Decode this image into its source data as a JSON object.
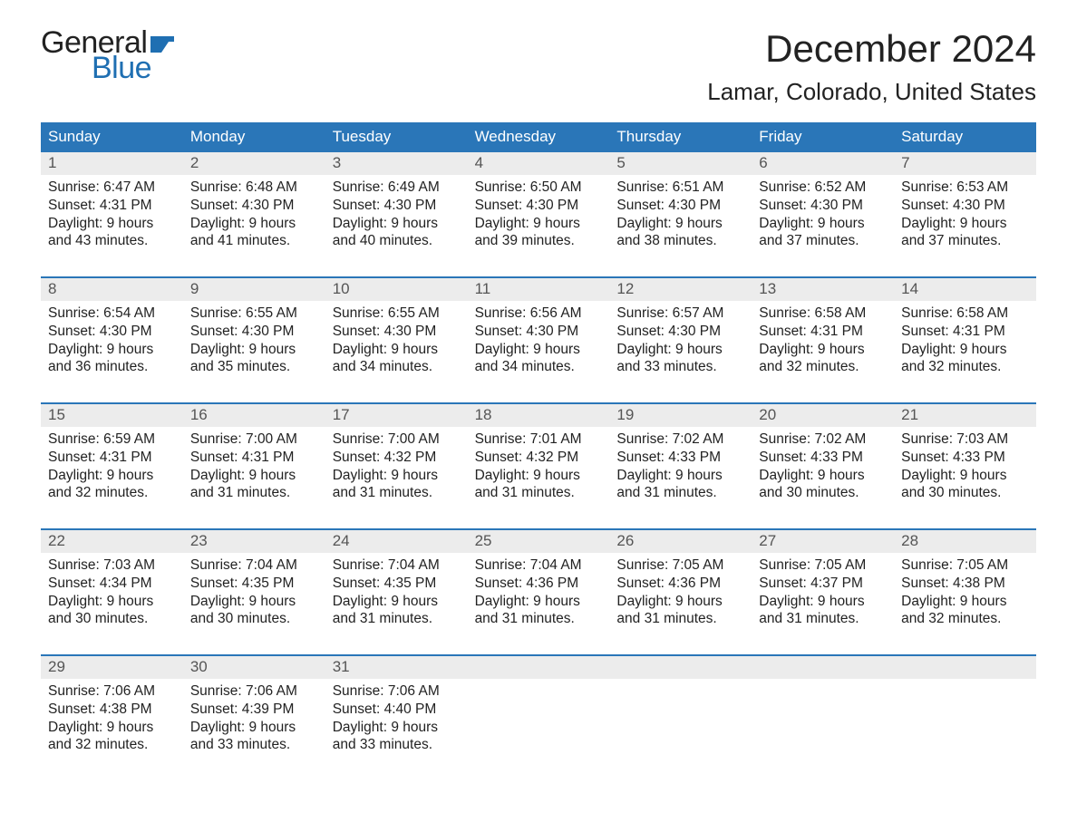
{
  "logo": {
    "top": "General",
    "bottom": "Blue"
  },
  "title": "December 2024",
  "location": "Lamar, Colorado, United States",
  "colors": {
    "header_bg": "#2a76b8",
    "header_text": "#ffffff",
    "daynum_bg": "#ececec",
    "daynum_text": "#555555",
    "body_text": "#222222",
    "logo_blue": "#1f6fb2",
    "separator": "#2a76b8",
    "page_bg": "#ffffff"
  },
  "typography": {
    "title_fontsize": 42,
    "location_fontsize": 26,
    "dayname_fontsize": 17,
    "daynum_fontsize": 17,
    "cell_fontsize": 15.5,
    "font_family": "Arial"
  },
  "layout": {
    "columns": 7,
    "rows": 5
  },
  "daynames": [
    "Sunday",
    "Monday",
    "Tuesday",
    "Wednesday",
    "Thursday",
    "Friday",
    "Saturday"
  ],
  "weeks": [
    {
      "nums": [
        "1",
        "2",
        "3",
        "4",
        "5",
        "6",
        "7"
      ],
      "cells": [
        {
          "sunrise": "Sunrise: 6:47 AM",
          "sunset": "Sunset: 4:31 PM",
          "d1": "Daylight: 9 hours",
          "d2": "and 43 minutes."
        },
        {
          "sunrise": "Sunrise: 6:48 AM",
          "sunset": "Sunset: 4:30 PM",
          "d1": "Daylight: 9 hours",
          "d2": "and 41 minutes."
        },
        {
          "sunrise": "Sunrise: 6:49 AM",
          "sunset": "Sunset: 4:30 PM",
          "d1": "Daylight: 9 hours",
          "d2": "and 40 minutes."
        },
        {
          "sunrise": "Sunrise: 6:50 AM",
          "sunset": "Sunset: 4:30 PM",
          "d1": "Daylight: 9 hours",
          "d2": "and 39 minutes."
        },
        {
          "sunrise": "Sunrise: 6:51 AM",
          "sunset": "Sunset: 4:30 PM",
          "d1": "Daylight: 9 hours",
          "d2": "and 38 minutes."
        },
        {
          "sunrise": "Sunrise: 6:52 AM",
          "sunset": "Sunset: 4:30 PM",
          "d1": "Daylight: 9 hours",
          "d2": "and 37 minutes."
        },
        {
          "sunrise": "Sunrise: 6:53 AM",
          "sunset": "Sunset: 4:30 PM",
          "d1": "Daylight: 9 hours",
          "d2": "and 37 minutes."
        }
      ]
    },
    {
      "nums": [
        "8",
        "9",
        "10",
        "11",
        "12",
        "13",
        "14"
      ],
      "cells": [
        {
          "sunrise": "Sunrise: 6:54 AM",
          "sunset": "Sunset: 4:30 PM",
          "d1": "Daylight: 9 hours",
          "d2": "and 36 minutes."
        },
        {
          "sunrise": "Sunrise: 6:55 AM",
          "sunset": "Sunset: 4:30 PM",
          "d1": "Daylight: 9 hours",
          "d2": "and 35 minutes."
        },
        {
          "sunrise": "Sunrise: 6:55 AM",
          "sunset": "Sunset: 4:30 PM",
          "d1": "Daylight: 9 hours",
          "d2": "and 34 minutes."
        },
        {
          "sunrise": "Sunrise: 6:56 AM",
          "sunset": "Sunset: 4:30 PM",
          "d1": "Daylight: 9 hours",
          "d2": "and 34 minutes."
        },
        {
          "sunrise": "Sunrise: 6:57 AM",
          "sunset": "Sunset: 4:30 PM",
          "d1": "Daylight: 9 hours",
          "d2": "and 33 minutes."
        },
        {
          "sunrise": "Sunrise: 6:58 AM",
          "sunset": "Sunset: 4:31 PM",
          "d1": "Daylight: 9 hours",
          "d2": "and 32 minutes."
        },
        {
          "sunrise": "Sunrise: 6:58 AM",
          "sunset": "Sunset: 4:31 PM",
          "d1": "Daylight: 9 hours",
          "d2": "and 32 minutes."
        }
      ]
    },
    {
      "nums": [
        "15",
        "16",
        "17",
        "18",
        "19",
        "20",
        "21"
      ],
      "cells": [
        {
          "sunrise": "Sunrise: 6:59 AM",
          "sunset": "Sunset: 4:31 PM",
          "d1": "Daylight: 9 hours",
          "d2": "and 32 minutes."
        },
        {
          "sunrise": "Sunrise: 7:00 AM",
          "sunset": "Sunset: 4:31 PM",
          "d1": "Daylight: 9 hours",
          "d2": "and 31 minutes."
        },
        {
          "sunrise": "Sunrise: 7:00 AM",
          "sunset": "Sunset: 4:32 PM",
          "d1": "Daylight: 9 hours",
          "d2": "and 31 minutes."
        },
        {
          "sunrise": "Sunrise: 7:01 AM",
          "sunset": "Sunset: 4:32 PM",
          "d1": "Daylight: 9 hours",
          "d2": "and 31 minutes."
        },
        {
          "sunrise": "Sunrise: 7:02 AM",
          "sunset": "Sunset: 4:33 PM",
          "d1": "Daylight: 9 hours",
          "d2": "and 31 minutes."
        },
        {
          "sunrise": "Sunrise: 7:02 AM",
          "sunset": "Sunset: 4:33 PM",
          "d1": "Daylight: 9 hours",
          "d2": "and 30 minutes."
        },
        {
          "sunrise": "Sunrise: 7:03 AM",
          "sunset": "Sunset: 4:33 PM",
          "d1": "Daylight: 9 hours",
          "d2": "and 30 minutes."
        }
      ]
    },
    {
      "nums": [
        "22",
        "23",
        "24",
        "25",
        "26",
        "27",
        "28"
      ],
      "cells": [
        {
          "sunrise": "Sunrise: 7:03 AM",
          "sunset": "Sunset: 4:34 PM",
          "d1": "Daylight: 9 hours",
          "d2": "and 30 minutes."
        },
        {
          "sunrise": "Sunrise: 7:04 AM",
          "sunset": "Sunset: 4:35 PM",
          "d1": "Daylight: 9 hours",
          "d2": "and 30 minutes."
        },
        {
          "sunrise": "Sunrise: 7:04 AM",
          "sunset": "Sunset: 4:35 PM",
          "d1": "Daylight: 9 hours",
          "d2": "and 31 minutes."
        },
        {
          "sunrise": "Sunrise: 7:04 AM",
          "sunset": "Sunset: 4:36 PM",
          "d1": "Daylight: 9 hours",
          "d2": "and 31 minutes."
        },
        {
          "sunrise": "Sunrise: 7:05 AM",
          "sunset": "Sunset: 4:36 PM",
          "d1": "Daylight: 9 hours",
          "d2": "and 31 minutes."
        },
        {
          "sunrise": "Sunrise: 7:05 AM",
          "sunset": "Sunset: 4:37 PM",
          "d1": "Daylight: 9 hours",
          "d2": "and 31 minutes."
        },
        {
          "sunrise": "Sunrise: 7:05 AM",
          "sunset": "Sunset: 4:38 PM",
          "d1": "Daylight: 9 hours",
          "d2": "and 32 minutes."
        }
      ]
    },
    {
      "nums": [
        "29",
        "30",
        "31",
        "",
        "",
        "",
        ""
      ],
      "cells": [
        {
          "sunrise": "Sunrise: 7:06 AM",
          "sunset": "Sunset: 4:38 PM",
          "d1": "Daylight: 9 hours",
          "d2": "and 32 minutes."
        },
        {
          "sunrise": "Sunrise: 7:06 AM",
          "sunset": "Sunset: 4:39 PM",
          "d1": "Daylight: 9 hours",
          "d2": "and 33 minutes."
        },
        {
          "sunrise": "Sunrise: 7:06 AM",
          "sunset": "Sunset: 4:40 PM",
          "d1": "Daylight: 9 hours",
          "d2": "and 33 minutes."
        },
        null,
        null,
        null,
        null
      ]
    }
  ]
}
